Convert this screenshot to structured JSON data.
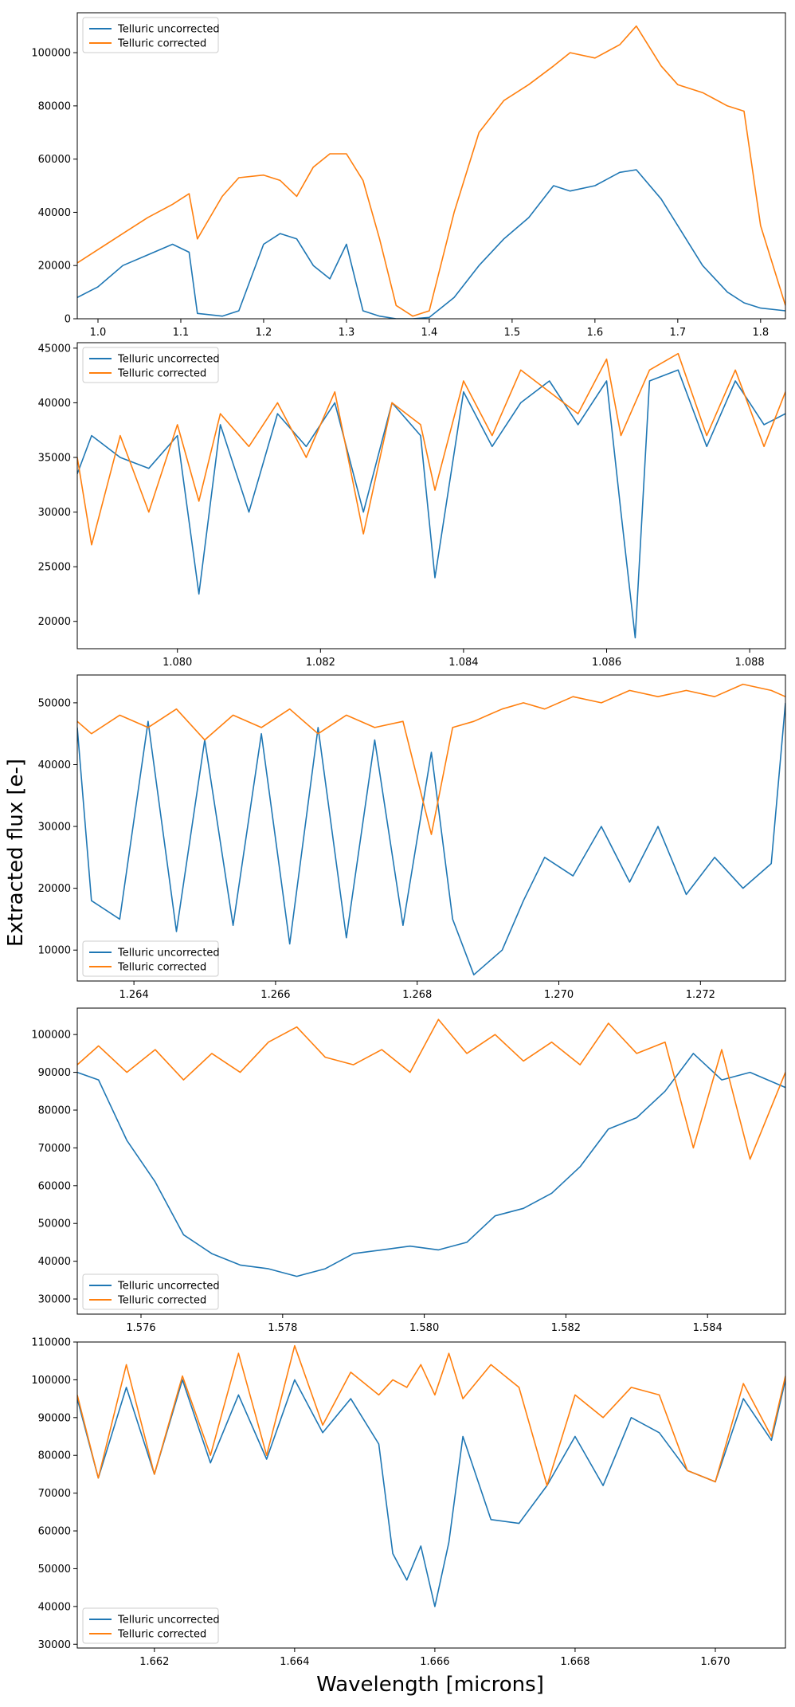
{
  "figure": {
    "ylabel": "Extracted flux [e-]",
    "xlabel": "Wavelength [microns]"
  },
  "colors": {
    "uncorrected": "#1f77b4",
    "corrected": "#ff7f0e"
  },
  "chart_data": [
    {
      "type": "line",
      "panel": "full-spectrum",
      "xlim": [
        0.975,
        1.83
      ],
      "ylim": [
        0,
        115000
      ],
      "xticks": [
        "1.0",
        "1.1",
        "1.2",
        "1.3",
        "1.4",
        "1.5",
        "1.6",
        "1.7",
        "1.8"
      ],
      "xtick_values": [
        1.0,
        1.1,
        1.2,
        1.3,
        1.4,
        1.5,
        1.6,
        1.7,
        1.8
      ],
      "yticks": [
        "0",
        "20000",
        "40000",
        "60000",
        "80000",
        "100000"
      ],
      "ytick_values": [
        0,
        20000,
        40000,
        60000,
        80000,
        100000
      ],
      "legend": {
        "position": "upper-left",
        "entries": [
          "Telluric uncorrected",
          "Telluric corrected"
        ]
      },
      "series": [
        {
          "name": "Telluric uncorrected",
          "x": [
            0.975,
            1.0,
            1.03,
            1.06,
            1.09,
            1.11,
            1.12,
            1.15,
            1.17,
            1.2,
            1.22,
            1.24,
            1.26,
            1.28,
            1.3,
            1.32,
            1.34,
            1.36,
            1.38,
            1.4,
            1.43,
            1.46,
            1.49,
            1.52,
            1.55,
            1.57,
            1.6,
            1.63,
            1.65,
            1.68,
            1.7,
            1.73,
            1.76,
            1.78,
            1.8,
            1.83
          ],
          "values": [
            8000,
            12000,
            20000,
            24000,
            28000,
            25000,
            2000,
            1000,
            3000,
            28000,
            32000,
            30000,
            20000,
            15000,
            28000,
            3000,
            1000,
            0,
            0,
            500,
            8000,
            20000,
            30000,
            38000,
            50000,
            48000,
            50000,
            55000,
            56000,
            45000,
            35000,
            20000,
            10000,
            6000,
            4000,
            3000
          ]
        },
        {
          "name": "Telluric corrected",
          "x": [
            0.975,
            1.0,
            1.03,
            1.06,
            1.09,
            1.11,
            1.12,
            1.15,
            1.17,
            1.2,
            1.22,
            1.24,
            1.26,
            1.28,
            1.3,
            1.32,
            1.34,
            1.36,
            1.38,
            1.4,
            1.43,
            1.46,
            1.49,
            1.52,
            1.55,
            1.57,
            1.6,
            1.63,
            1.65,
            1.68,
            1.7,
            1.73,
            1.76,
            1.78,
            1.8,
            1.83
          ],
          "values": [
            21000,
            26000,
            32000,
            38000,
            43000,
            47000,
            30000,
            46000,
            53000,
            54000,
            52000,
            46000,
            57000,
            62000,
            62000,
            52000,
            30000,
            5000,
            1000,
            3000,
            40000,
            70000,
            82000,
            88000,
            95000,
            100000,
            98000,
            103000,
            110000,
            95000,
            88000,
            85000,
            80000,
            78000,
            35000,
            5000
          ]
        }
      ]
    },
    {
      "type": "line",
      "panel": "zoom-1080",
      "xlim": [
        1.0786,
        1.0885
      ],
      "ylim": [
        17500,
        45500
      ],
      "xticks": [
        "1.080",
        "1.082",
        "1.084",
        "1.086",
        "1.088"
      ],
      "xtick_values": [
        1.08,
        1.082,
        1.084,
        1.086,
        1.088
      ],
      "yticks": [
        "20000",
        "25000",
        "30000",
        "35000",
        "40000",
        "45000"
      ],
      "ytick_values": [
        20000,
        25000,
        30000,
        35000,
        40000,
        45000
      ],
      "legend": {
        "position": "upper-left",
        "entries": [
          "Telluric uncorrected",
          "Telluric corrected"
        ]
      },
      "series": [
        {
          "name": "Telluric uncorrected",
          "x": [
            1.0786,
            1.0788,
            1.0792,
            1.0796,
            1.08,
            1.0803,
            1.0806,
            1.081,
            1.0814,
            1.0818,
            1.0822,
            1.0826,
            1.083,
            1.0834,
            1.0836,
            1.084,
            1.0844,
            1.0848,
            1.0852,
            1.0856,
            1.086,
            1.0862,
            1.0864,
            1.0866,
            1.087,
            1.0874,
            1.0878,
            1.0882,
            1.0885
          ],
          "values": [
            33500,
            37000,
            35000,
            34000,
            37000,
            22500,
            38000,
            30000,
            39000,
            36000,
            40000,
            30000,
            40000,
            37000,
            24000,
            41000,
            36000,
            40000,
            42000,
            38000,
            42000,
            30000,
            18500,
            42000,
            43000,
            36000,
            42000,
            38000,
            39000
          ]
        },
        {
          "name": "Telluric corrected",
          "x": [
            1.0786,
            1.0788,
            1.0792,
            1.0796,
            1.08,
            1.0803,
            1.0806,
            1.081,
            1.0814,
            1.0818,
            1.0822,
            1.0826,
            1.083,
            1.0834,
            1.0836,
            1.084,
            1.0844,
            1.0848,
            1.0852,
            1.0856,
            1.086,
            1.0862,
            1.0864,
            1.0866,
            1.087,
            1.0874,
            1.0878,
            1.0882,
            1.0885
          ],
          "values": [
            35000,
            27000,
            37000,
            30000,
            38000,
            31000,
            39000,
            36000,
            40000,
            35000,
            41000,
            28000,
            40000,
            38000,
            32000,
            42000,
            37000,
            43000,
            41000,
            39000,
            44000,
            37000,
            40000,
            43000,
            44500,
            37000,
            43000,
            36000,
            41000
          ]
        }
      ]
    },
    {
      "type": "line",
      "panel": "zoom-1268",
      "xlim": [
        1.2632,
        1.2732
      ],
      "ylim": [
        5000,
        54500
      ],
      "xticks": [
        "1.264",
        "1.266",
        "1.268",
        "1.270",
        "1.272"
      ],
      "xtick_values": [
        1.264,
        1.266,
        1.268,
        1.27,
        1.272
      ],
      "yticks": [
        "10000",
        "20000",
        "30000",
        "40000",
        "50000"
      ],
      "ytick_values": [
        10000,
        20000,
        30000,
        40000,
        50000
      ],
      "legend": {
        "position": "lower-left",
        "entries": [
          "Telluric uncorrected",
          "Telluric corrected"
        ]
      },
      "series": [
        {
          "name": "Telluric uncorrected",
          "x": [
            1.2632,
            1.2634,
            1.2638,
            1.2642,
            1.2646,
            1.265,
            1.2654,
            1.2658,
            1.2662,
            1.2666,
            1.267,
            1.2674,
            1.2678,
            1.2682,
            1.2685,
            1.2688,
            1.269,
            1.2692,
            1.2695,
            1.2698,
            1.2702,
            1.2706,
            1.271,
            1.2714,
            1.2718,
            1.2722,
            1.2726,
            1.273,
            1.2732
          ],
          "values": [
            46000,
            18000,
            15000,
            47000,
            13000,
            44000,
            14000,
            45000,
            11000,
            46000,
            12000,
            44000,
            14000,
            42000,
            15000,
            6000,
            8000,
            10000,
            18000,
            25000,
            22000,
            30000,
            21000,
            30000,
            19000,
            25000,
            20000,
            24000,
            50000
          ]
        },
        {
          "name": "Telluric corrected",
          "x": [
            1.2632,
            1.2634,
            1.2638,
            1.2642,
            1.2646,
            1.265,
            1.2654,
            1.2658,
            1.2662,
            1.2666,
            1.267,
            1.2674,
            1.2678,
            1.2682,
            1.2685,
            1.2688,
            1.269,
            1.2692,
            1.2695,
            1.2698,
            1.2702,
            1.2706,
            1.271,
            1.2714,
            1.2718,
            1.2722,
            1.2726,
            1.273,
            1.2732
          ],
          "values": [
            47000,
            45000,
            48000,
            46000,
            49000,
            44000,
            48000,
            46000,
            49000,
            45000,
            48000,
            46000,
            47000,
            28700,
            46000,
            47000,
            48000,
            49000,
            50000,
            49000,
            51000,
            50000,
            52000,
            51000,
            52000,
            51000,
            53000,
            52000,
            51000
          ]
        }
      ]
    },
    {
      "type": "line",
      "panel": "zoom-1580",
      "xlim": [
        1.5751,
        1.5851
      ],
      "ylim": [
        26000,
        107000
      ],
      "xticks": [
        "1.576",
        "1.578",
        "1.580",
        "1.582",
        "1.584"
      ],
      "xtick_values": [
        1.576,
        1.578,
        1.58,
        1.582,
        1.584
      ],
      "yticks": [
        "30000",
        "40000",
        "50000",
        "60000",
        "70000",
        "80000",
        "90000",
        "100000"
      ],
      "ytick_values": [
        30000,
        40000,
        50000,
        60000,
        70000,
        80000,
        90000,
        100000
      ],
      "legend": {
        "position": "lower-left",
        "entries": [
          "Telluric uncorrected",
          "Telluric corrected"
        ]
      },
      "series": [
        {
          "name": "Telluric uncorrected",
          "x": [
            1.5751,
            1.5754,
            1.5758,
            1.5762,
            1.5766,
            1.577,
            1.5774,
            1.5778,
            1.5782,
            1.5786,
            1.579,
            1.5794,
            1.5798,
            1.5802,
            1.5806,
            1.581,
            1.5814,
            1.5818,
            1.5822,
            1.5826,
            1.583,
            1.5834,
            1.5838,
            1.5842,
            1.5846,
            1.5851
          ],
          "values": [
            90000,
            88000,
            72000,
            61000,
            47000,
            42000,
            39000,
            38000,
            36000,
            38000,
            42000,
            43000,
            44000,
            43000,
            45000,
            52000,
            54000,
            58000,
            65000,
            75000,
            78000,
            85000,
            95000,
            88000,
            90000,
            86000
          ]
        },
        {
          "name": "Telluric corrected",
          "x": [
            1.5751,
            1.5754,
            1.5758,
            1.5762,
            1.5766,
            1.577,
            1.5774,
            1.5778,
            1.5782,
            1.5786,
            1.579,
            1.5794,
            1.5798,
            1.5802,
            1.5806,
            1.581,
            1.5814,
            1.5818,
            1.5822,
            1.5826,
            1.583,
            1.5834,
            1.5838,
            1.5842,
            1.5846,
            1.5851
          ],
          "values": [
            92000,
            97000,
            90000,
            96000,
            88000,
            95000,
            90000,
            98000,
            102000,
            94000,
            92000,
            96000,
            90000,
            104000,
            95000,
            100000,
            93000,
            98000,
            92000,
            103000,
            95000,
            98000,
            70000,
            96000,
            67000,
            90000
          ]
        }
      ]
    },
    {
      "type": "line",
      "panel": "zoom-1666",
      "xlim": [
        1.6609,
        1.671
      ],
      "ylim": [
        29000,
        110000
      ],
      "xticks": [
        "1.662",
        "1.664",
        "1.666",
        "1.668",
        "1.670"
      ],
      "xtick_values": [
        1.662,
        1.664,
        1.666,
        1.668,
        1.67
      ],
      "yticks": [
        "30000",
        "40000",
        "50000",
        "60000",
        "70000",
        "80000",
        "90000",
        "100000",
        "110000"
      ],
      "ytick_values": [
        30000,
        40000,
        50000,
        60000,
        70000,
        80000,
        90000,
        100000,
        110000
      ],
      "legend": {
        "position": "lower-left",
        "entries": [
          "Telluric uncorrected",
          "Telluric corrected"
        ]
      },
      "series": [
        {
          "name": "Telluric uncorrected",
          "x": [
            1.6609,
            1.6612,
            1.6616,
            1.662,
            1.6624,
            1.6628,
            1.6632,
            1.6636,
            1.664,
            1.6644,
            1.6648,
            1.6652,
            1.6654,
            1.6656,
            1.6658,
            1.666,
            1.6662,
            1.6664,
            1.6668,
            1.6672,
            1.6676,
            1.668,
            1.6684,
            1.6688,
            1.6692,
            1.6696,
            1.67,
            1.6704,
            1.6708,
            1.671
          ],
          "values": [
            95000,
            74000,
            98000,
            75000,
            100000,
            78000,
            96000,
            79000,
            100000,
            86000,
            95000,
            83000,
            54000,
            47000,
            56000,
            40000,
            57000,
            85000,
            63000,
            62000,
            72000,
            85000,
            72000,
            90000,
            86000,
            76000,
            73000,
            95000,
            84000,
            100000
          ]
        },
        {
          "name": "Telluric corrected",
          "x": [
            1.6609,
            1.6612,
            1.6616,
            1.662,
            1.6624,
            1.6628,
            1.6632,
            1.6636,
            1.664,
            1.6644,
            1.6648,
            1.6652,
            1.6654,
            1.6656,
            1.6658,
            1.666,
            1.6662,
            1.6664,
            1.6668,
            1.6672,
            1.6676,
            1.668,
            1.6684,
            1.6688,
            1.6692,
            1.6696,
            1.67,
            1.6704,
            1.6708,
            1.671
          ],
          "values": [
            96000,
            74000,
            104000,
            75000,
            101000,
            80000,
            107000,
            80000,
            109000,
            88000,
            102000,
            96000,
            100000,
            98000,
            104000,
            96000,
            107000,
            95000,
            104000,
            98000,
            72000,
            96000,
            90000,
            98000,
            96000,
            76000,
            73000,
            99000,
            85000,
            101000
          ]
        }
      ]
    }
  ]
}
